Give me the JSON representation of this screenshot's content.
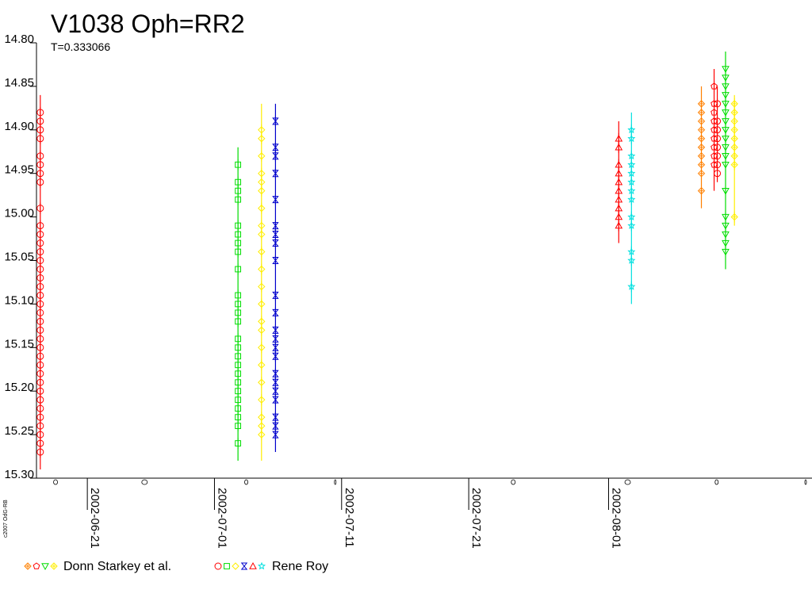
{
  "chart_data": {
    "type": "scatter",
    "title": "V1038 Oph=RR2",
    "subtitle": "T=0.333066",
    "copyright": "c2007 OdG-RB",
    "y_reversed": true,
    "ylim": [
      14.8,
      15.3
    ],
    "y_ticks": [
      "14.80",
      "14.85",
      "14.90",
      "14.95",
      "15.00",
      "15.05",
      "15.10",
      "15.15",
      "15.20",
      "15.25",
      "15.30"
    ],
    "xlim": [
      "2002-06-17",
      "2002-08-17"
    ],
    "x_ticks": [
      "2002-06-21",
      "2002-07-01",
      "2002-07-11",
      "2002-07-21",
      "2002-08-01"
    ],
    "moon_phase_marks": [
      "2002-06-18",
      "2002-06-25",
      "2002-07-03",
      "2002-07-10",
      "2002-07-24",
      "2002-08-02",
      "2002-08-09",
      "2002-08-16"
    ],
    "legend": [
      {
        "label": "Donn Starkey et al.",
        "markers": [
          "plus-diamond",
          "pentagon",
          "triangle-down",
          "plus-diamond"
        ],
        "colors": [
          "#ff8000",
          "#ff0000",
          "#00dd00",
          "#ffee00"
        ]
      },
      {
        "label": "Rene Roy",
        "markers": [
          "circle",
          "square",
          "diamond",
          "bowtie",
          "triangle",
          "star"
        ],
        "colors": [
          "#ff0000",
          "#00dd00",
          "#ffee00",
          "#0000cc",
          "#ff0000",
          "#00e0e0"
        ]
      }
    ],
    "series": [
      {
        "date": "2002-06-17",
        "x": 0.3,
        "marker": "circle",
        "color": "#ff0000",
        "err_low": 14.86,
        "err_high": 15.29,
        "y": [
          14.88,
          14.89,
          14.9,
          14.91,
          14.93,
          14.94,
          14.95,
          14.96,
          14.99,
          15.01,
          15.02,
          15.03,
          15.04,
          15.05,
          15.06,
          15.07,
          15.08,
          15.09,
          15.1,
          15.11,
          15.12,
          15.13,
          15.14,
          15.15,
          15.16,
          15.17,
          15.18,
          15.19,
          15.2,
          15.21,
          15.22,
          15.23,
          15.24,
          15.25,
          15.26,
          15.27
        ]
      },
      {
        "date": "2002-07-02",
        "x": 0.85,
        "marker": "square",
        "color": "#00dd00",
        "err_low": 14.92,
        "err_high": 15.28,
        "y": [
          14.94,
          14.96,
          14.97,
          14.98,
          15.01,
          15.02,
          15.03,
          15.04,
          15.06,
          15.09,
          15.1,
          15.11,
          15.12,
          15.14,
          15.15,
          15.16,
          15.17,
          15.18,
          15.19,
          15.2,
          15.21,
          15.22,
          15.23,
          15.24,
          15.26
        ]
      },
      {
        "date": "2002-07-04",
        "x": 0.7,
        "marker": "diamond",
        "color": "#ffee00",
        "err_low": 14.87,
        "err_high": 15.28,
        "y": [
          14.9,
          14.91,
          14.93,
          14.95,
          14.96,
          14.97,
          14.99,
          15.01,
          15.02,
          15.04,
          15.06,
          15.08,
          15.1,
          15.12,
          15.13,
          15.15,
          15.17,
          15.19,
          15.21,
          15.23,
          15.24,
          15.25
        ]
      },
      {
        "date": "2002-07-05",
        "x": 0.8,
        "marker": "bowtie",
        "color": "#0000cc",
        "err_low": 14.87,
        "err_high": 15.27,
        "y": [
          14.89,
          14.92,
          14.93,
          14.95,
          14.98,
          15.01,
          15.02,
          15.03,
          15.05,
          15.09,
          15.11,
          15.13,
          15.14,
          15.15,
          15.16,
          15.18,
          15.19,
          15.2,
          15.21,
          15.23,
          15.24,
          15.25
        ]
      },
      {
        "date": "2002-08-01",
        "x": 0.8,
        "marker": "triangle",
        "color": "#ff0000",
        "err_low": 14.89,
        "err_high": 15.03,
        "y": [
          14.91,
          14.92,
          14.94,
          14.95,
          14.96,
          14.97,
          14.98,
          14.99,
          15.0,
          15.01
        ]
      },
      {
        "date": "2002-08-02",
        "x": 0.8,
        "marker": "star",
        "color": "#00e0e0",
        "err_low": 14.88,
        "err_high": 15.1,
        "y": [
          14.9,
          14.91,
          14.93,
          14.94,
          14.95,
          14.96,
          14.97,
          14.98,
          15.0,
          15.01,
          15.04,
          15.05,
          15.08
        ]
      },
      {
        "date": "2002-08-08",
        "x": 0.3,
        "marker": "plus-diamond",
        "color": "#ff8000",
        "err_low": 14.85,
        "err_high": 14.99,
        "y": [
          14.87,
          14.88,
          14.89,
          14.9,
          14.91,
          14.92,
          14.93,
          14.94,
          14.95,
          14.97
        ]
      },
      {
        "date": "2002-08-09",
        "x": 0.3,
        "marker": "pentagon",
        "color": "#ff0000",
        "err_low": 14.83,
        "err_high": 14.97,
        "y": [
          14.85,
          14.87,
          14.88,
          14.89,
          14.9,
          14.91,
          14.92,
          14.93,
          14.94
        ]
      },
      {
        "date": "2002-08-09",
        "x": 0.55,
        "marker": "circle",
        "color": "#ff0000",
        "err_low": 14.85,
        "err_high": 14.96,
        "y": [
          14.87,
          14.89,
          14.9,
          14.91,
          14.92,
          14.93,
          14.94,
          14.95
        ]
      },
      {
        "date": "2002-08-10",
        "x": 0.2,
        "marker": "triangle-down",
        "color": "#00dd00",
        "err_low": 14.81,
        "err_high": 15.06,
        "y": [
          14.83,
          14.84,
          14.85,
          14.86,
          14.87,
          14.88,
          14.89,
          14.9,
          14.91,
          14.92,
          14.93,
          14.94,
          14.97,
          15.0,
          15.01,
          15.02,
          15.03,
          15.04
        ]
      },
      {
        "date": "2002-08-10",
        "x": 0.9,
        "marker": "plus-diamond",
        "color": "#ffee00",
        "err_low": 14.86,
        "err_high": 15.01,
        "y": [
          14.87,
          14.88,
          14.89,
          14.9,
          14.91,
          14.92,
          14.93,
          14.94,
          15.0
        ]
      }
    ]
  }
}
